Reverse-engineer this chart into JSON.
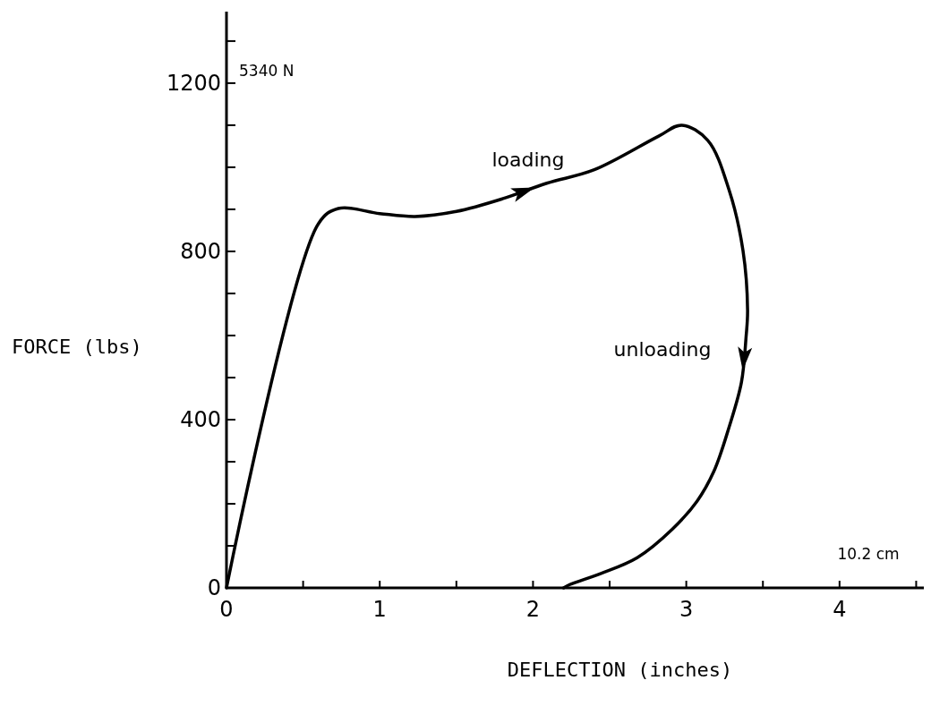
{
  "chart_data": {
    "type": "line",
    "xlabel": "DEFLECTION (inches)",
    "ylabel": "FORCE (lbs)",
    "x": [
      0,
      0.6,
      0.73,
      1.0,
      1.23,
      1.5,
      1.8,
      2.09,
      2.4,
      2.82,
      2.97,
      3.14,
      3.28,
      3.37,
      3.4,
      3.39,
      3.36,
      3.28,
      3.18,
      3.07,
      2.91,
      2.68,
      2.44,
      2.24,
      2.2
    ],
    "series": [
      {
        "color": "#000000",
        "values": [
          0,
          866,
          902,
          890,
          883,
          895,
          925,
          962,
          994,
          1074,
          1100,
          1064,
          945,
          802,
          660,
          596,
          489,
          383,
          277,
          206,
          140,
          72,
          34,
          8,
          0
        ]
      }
    ],
    "xlim": [
      0,
      4.55
    ],
    "ylim": [
      0,
      1370
    ],
    "xticks": [
      0,
      {
        "value": 0.5,
        "label": null
      },
      1,
      {
        "value": 1.5,
        "label": null
      },
      2,
      {
        "value": 2.5,
        "label": null
      },
      3,
      {
        "value": 3.5,
        "label": null
      },
      4,
      {
        "value": 4.5,
        "label": null
      }
    ],
    "yticks": [
      0,
      {
        "value": 100,
        "label": null
      },
      {
        "value": 200,
        "label": null
      },
      {
        "value": 300,
        "label": null
      },
      400,
      {
        "value": 500,
        "label": null
      },
      {
        "value": 600,
        "label": null
      },
      {
        "value": 700,
        "label": null
      },
      800,
      {
        "value": 900,
        "label": null
      },
      {
        "value": 1000,
        "label": null
      },
      {
        "value": 1100,
        "label": null
      },
      1200,
      {
        "value": 1300,
        "label": null
      }
    ],
    "annotations": [
      "loading",
      "unloading",
      "5340 N",
      "10.2 cm"
    ],
    "grid": false,
    "marker": "none",
    "line_style": "solid"
  }
}
